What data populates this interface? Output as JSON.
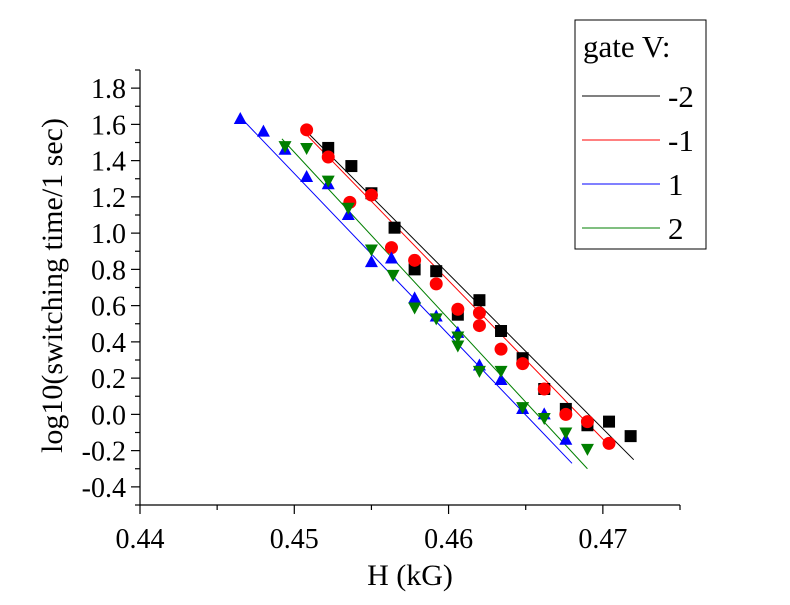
{
  "chart_data": {
    "type": "scatter",
    "xlabel": "H (kG)",
    "ylabel": "log10(switching time/1 sec)",
    "xlim": [
      0.44,
      0.475
    ],
    "ylim": [
      -0.5,
      1.9
    ],
    "x_ticks": [
      0.44,
      0.45,
      0.46,
      0.47
    ],
    "x_tick_labels": [
      "0.44",
      "0.45",
      "0.46",
      "0.47"
    ],
    "y_ticks": [
      -0.4,
      -0.2,
      0.0,
      0.2,
      0.4,
      0.6,
      0.8,
      1.0,
      1.2,
      1.4,
      1.6,
      1.8
    ],
    "y_tick_labels": [
      "-0.4",
      "-0.2",
      "0.0",
      "0.2",
      "0.4",
      "0.6",
      "0.8",
      "1.0",
      "1.2",
      "1.4",
      "1.6",
      "1.8"
    ],
    "grid": false,
    "legend_title": "gate V:",
    "legend_position": "top-right",
    "series": [
      {
        "name": "-2",
        "color": "#000000",
        "marker": "square",
        "points": [
          [
            0.4522,
            1.47
          ],
          [
            0.4537,
            1.37
          ],
          [
            0.455,
            1.22
          ],
          [
            0.4565,
            1.03
          ],
          [
            0.4578,
            0.8
          ],
          [
            0.4592,
            0.79
          ],
          [
            0.4606,
            0.55
          ],
          [
            0.462,
            0.63
          ],
          [
            0.4634,
            0.46
          ],
          [
            0.4648,
            0.31
          ],
          [
            0.4662,
            0.14
          ],
          [
            0.4676,
            0.03
          ],
          [
            0.469,
            -0.06
          ],
          [
            0.4704,
            -0.04
          ],
          [
            0.4718,
            -0.12
          ]
        ],
        "fit": [
          [
            0.4508,
            1.56
          ],
          [
            0.472,
            -0.25
          ]
        ]
      },
      {
        "name": "-1",
        "color": "#ff0000",
        "marker": "circle",
        "points": [
          [
            0.4508,
            1.57
          ],
          [
            0.4522,
            1.42
          ],
          [
            0.4536,
            1.17
          ],
          [
            0.455,
            1.21
          ],
          [
            0.4563,
            0.92
          ],
          [
            0.4578,
            0.85
          ],
          [
            0.4592,
            0.72
          ],
          [
            0.4606,
            0.58
          ],
          [
            0.462,
            0.49
          ],
          [
            0.462,
            0.56
          ],
          [
            0.4634,
            0.36
          ],
          [
            0.4648,
            0.28
          ],
          [
            0.4662,
            0.14
          ],
          [
            0.4676,
            0.0
          ],
          [
            0.469,
            -0.04
          ],
          [
            0.4704,
            -0.16
          ]
        ],
        "fit": [
          [
            0.4506,
            1.56
          ],
          [
            0.4705,
            -0.18
          ]
        ]
      },
      {
        "name": "1",
        "color": "#0000ff",
        "marker": "triangle-up",
        "points": [
          [
            0.4465,
            1.63
          ],
          [
            0.448,
            1.56
          ],
          [
            0.4494,
            1.46
          ],
          [
            0.4508,
            1.31
          ],
          [
            0.4522,
            1.27
          ],
          [
            0.4535,
            1.1
          ],
          [
            0.455,
            0.84
          ],
          [
            0.4563,
            0.86
          ],
          [
            0.4578,
            0.64
          ],
          [
            0.4592,
            0.54
          ],
          [
            0.4606,
            0.45
          ],
          [
            0.462,
            0.27
          ],
          [
            0.4634,
            0.19
          ],
          [
            0.4648,
            0.03
          ],
          [
            0.4662,
            0.0
          ],
          [
            0.4676,
            -0.14
          ]
        ],
        "fit": [
          [
            0.4465,
            1.64
          ],
          [
            0.468,
            -0.27
          ]
        ]
      },
      {
        "name": "2",
        "color": "#007f00",
        "marker": "triangle-down",
        "points": [
          [
            0.4494,
            1.48
          ],
          [
            0.4508,
            1.47
          ],
          [
            0.4522,
            1.29
          ],
          [
            0.4535,
            1.14
          ],
          [
            0.455,
            0.91
          ],
          [
            0.4564,
            0.77
          ],
          [
            0.4578,
            0.59
          ],
          [
            0.4592,
            0.53
          ],
          [
            0.4606,
            0.43
          ],
          [
            0.4606,
            0.38
          ],
          [
            0.462,
            0.24
          ],
          [
            0.4634,
            0.24
          ],
          [
            0.4648,
            0.04
          ],
          [
            0.4662,
            -0.02
          ],
          [
            0.4676,
            -0.1
          ],
          [
            0.469,
            -0.19
          ]
        ],
        "fit": [
          [
            0.4492,
            1.52
          ],
          [
            0.469,
            -0.3
          ]
        ]
      }
    ]
  }
}
